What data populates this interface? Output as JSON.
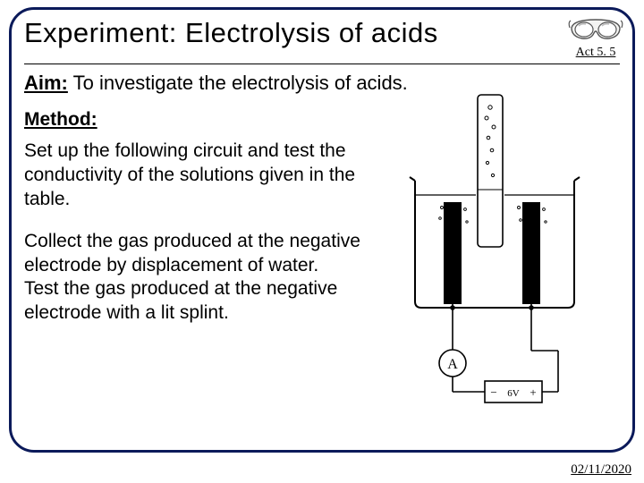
{
  "title": "Experiment: Electrolysis of acids",
  "act_label": "Act  5. 5",
  "aim_label": "Aim:",
  "aim_text": " To investigate the electrolysis of acids.",
  "method_label": "Method:",
  "para1": "Set up the following circuit and test the conductivity of the solutions given in the table.",
  "para2": "Collect the gas produced at the negative electrode by displacement of water.\nTest the gas produced at the negative electrode with a lit splint.",
  "footer_date": "02/11/2020",
  "colors": {
    "border": "#0b1a5a",
    "text": "#000000",
    "bg": "#ffffff"
  },
  "diagram": {
    "beaker_stroke": "#000000",
    "electrode_fill": "#000000",
    "wire_stroke": "#000000",
    "ammeter_label": "A",
    "battery_labels": [
      "−",
      "6V",
      "+"
    ]
  }
}
